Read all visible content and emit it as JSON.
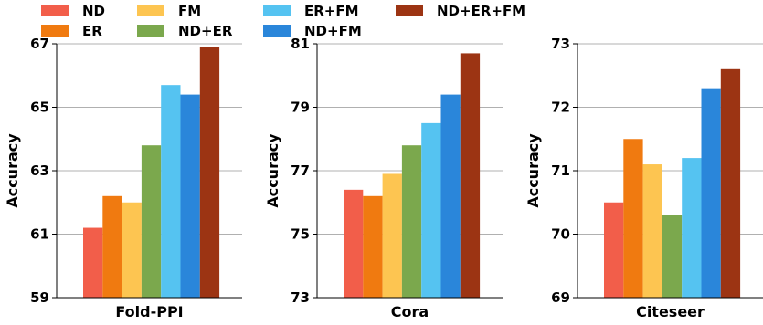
{
  "legend": {
    "entries": [
      {
        "name": "ND",
        "color": "#F25E4A"
      },
      {
        "name": "ER",
        "color": "#F07A10"
      },
      {
        "name": "FM",
        "color": "#FDC551"
      },
      {
        "name": "ND+ER",
        "color": "#7BA84D"
      },
      {
        "name": "ER+FM",
        "color": "#55C3F1"
      },
      {
        "name": "ND+FM",
        "color": "#2A86DA"
      },
      {
        "name": "ND+ER+FM",
        "color": "#9C3413"
      }
    ]
  },
  "chart_data": [
    {
      "type": "bar",
      "title": "",
      "xlabel": "Fold-PPI",
      "ylabel": "Accuracy",
      "ylim": [
        59,
        67
      ],
      "yticks": [
        59,
        61,
        63,
        65,
        67
      ],
      "grid": true,
      "categories": [
        "ND",
        "ER",
        "FM",
        "ND+ER",
        "ER+FM",
        "ND+FM",
        "ND+ER+FM"
      ],
      "values": [
        61.2,
        62.2,
        62.0,
        63.8,
        65.7,
        65.4,
        66.9
      ]
    },
    {
      "type": "bar",
      "title": "",
      "xlabel": "Cora",
      "ylabel": "Accuracy",
      "ylim": [
        73,
        81
      ],
      "yticks": [
        73,
        75,
        77,
        79,
        81
      ],
      "grid": true,
      "categories": [
        "ND",
        "ER",
        "FM",
        "ND+ER",
        "ER+FM",
        "ND+FM",
        "ND+ER+FM"
      ],
      "values": [
        76.4,
        76.2,
        76.9,
        77.8,
        78.5,
        79.4,
        80.7
      ]
    },
    {
      "type": "bar",
      "title": "",
      "xlabel": "Citeseer",
      "ylabel": "Accuracy",
      "ylim": [
        69,
        73
      ],
      "yticks": [
        69,
        70,
        71,
        72,
        73
      ],
      "grid": true,
      "categories": [
        "ND",
        "ER",
        "FM",
        "ND+ER",
        "ER+FM",
        "ND+FM",
        "ND+ER+FM"
      ],
      "values": [
        70.5,
        71.5,
        71.1,
        70.3,
        71.2,
        72.3,
        72.6
      ]
    }
  ]
}
